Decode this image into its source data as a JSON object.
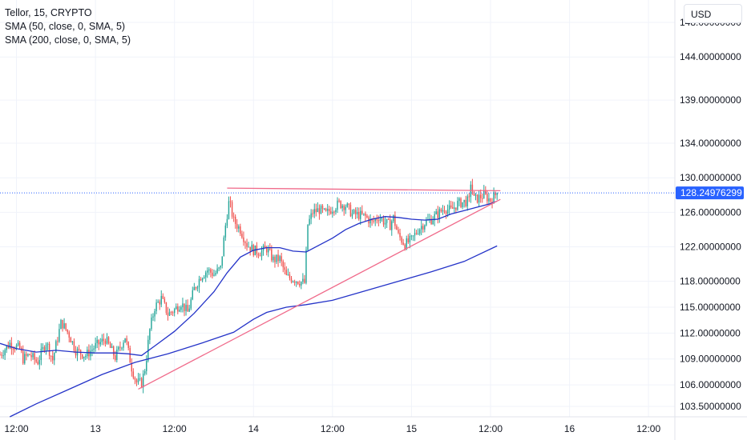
{
  "legend": {
    "symbol": "Tellor, 15, CRYPTO",
    "sma50": "SMA (50, close, 0, SMA, 5)",
    "sma200": "SMA (200, close, 0, SMA, 5)"
  },
  "currency": "USD",
  "colors": {
    "up": "#26a69a",
    "down": "#ef5350",
    "sma": "#2433c8",
    "trendline": "#f06a8a",
    "price_tag": "#2962ff",
    "grid": "#f0f3fa"
  },
  "chart_data": {
    "type": "candlestick",
    "y_ticks": [
      "148.00000000",
      "144.00000000",
      "139.00000000",
      "134.00000000",
      "130.00000000",
      "126.00000000",
      "122.00000000",
      "118.00000000",
      "115.00000000",
      "112.00000000",
      "109.00000000",
      "106.00000000",
      "103.50000000"
    ],
    "y_tick_values": [
      148,
      144,
      139,
      134,
      130,
      126,
      122,
      118,
      115,
      112,
      109,
      106,
      103.5
    ],
    "ylim": [
      102.3,
      150.6
    ],
    "x_ticks": [
      {
        "label": "12:00",
        "t": 12
      },
      {
        "label": "13",
        "t": 24
      },
      {
        "label": "12:00",
        "t": 36
      },
      {
        "label": "14",
        "t": 48
      },
      {
        "label": "12:00",
        "t": 60
      },
      {
        "label": "15",
        "t": 72
      },
      {
        "label": "12:00",
        "t": 84
      },
      {
        "label": "16",
        "t": 96
      },
      {
        "label": "12:00",
        "t": 108
      }
    ],
    "xlim": [
      9.5,
      112
    ],
    "last_price": "128.24976299",
    "last_price_value": 128.25,
    "anchors": [
      [
        9.5,
        109.5
      ],
      [
        11,
        110.8
      ],
      [
        12.5,
        110.2
      ],
      [
        13,
        109
      ],
      [
        14,
        109.5
      ],
      [
        15.2,
        108.6
      ],
      [
        16.5,
        111
      ],
      [
        17.5,
        108.9
      ],
      [
        18.8,
        113.3
      ],
      [
        20,
        111.8
      ],
      [
        21,
        110
      ],
      [
        22.5,
        109.4
      ],
      [
        24,
        110.5
      ],
      [
        25.5,
        111.3
      ],
      [
        27,
        109.2
      ],
      [
        28.5,
        111.6
      ],
      [
        29.5,
        108
      ],
      [
        30.2,
        106.3
      ],
      [
        31,
        106.2
      ],
      [
        31.6,
        108.2
      ],
      [
        32.2,
        112.2
      ],
      [
        33,
        115
      ],
      [
        34,
        116
      ],
      [
        35,
        114.2
      ],
      [
        36,
        114.7
      ],
      [
        37,
        115.5
      ],
      [
        38,
        114.4
      ],
      [
        39,
        117.1
      ],
      [
        40,
        118.6
      ],
      [
        41,
        119.3
      ],
      [
        42,
        118.8
      ],
      [
        43,
        119.5
      ],
      [
        43.8,
        124.8
      ],
      [
        44.3,
        127.3
      ],
      [
        45,
        125
      ],
      [
        46,
        124
      ],
      [
        47,
        122.3
      ],
      [
        48,
        121.6
      ],
      [
        49,
        121.4
      ],
      [
        50,
        121.8
      ],
      [
        51,
        120.5
      ],
      [
        52,
        120.6
      ],
      [
        53,
        118.5
      ],
      [
        54,
        118.3
      ],
      [
        55,
        118
      ],
      [
        55.8,
        117.8
      ],
      [
        56.2,
        124.5
      ],
      [
        57,
        126
      ],
      [
        58,
        126.3
      ],
      [
        59,
        125.8
      ],
      [
        60,
        126.5
      ],
      [
        61,
        127
      ],
      [
        62,
        126.8
      ],
      [
        63,
        125.8
      ],
      [
        64,
        125.7
      ],
      [
        65,
        125.5
      ],
      [
        66,
        124.8
      ],
      [
        67,
        125.5
      ],
      [
        68,
        124.8
      ],
      [
        68.8,
        124.5
      ],
      [
        69.2,
        125.5
      ],
      [
        70,
        123.3
      ],
      [
        71,
        122.3
      ],
      [
        72,
        122.8
      ],
      [
        73,
        124
      ],
      [
        74,
        124.8
      ],
      [
        75,
        125.2
      ],
      [
        76,
        125.8
      ],
      [
        77,
        126.5
      ],
      [
        78,
        126.2
      ],
      [
        79,
        127
      ],
      [
        80,
        127.2
      ],
      [
        80.8,
        127.3
      ],
      [
        81,
        129.5
      ],
      [
        81.5,
        127.5
      ],
      [
        82,
        127.6
      ],
      [
        83,
        128
      ],
      [
        84,
        127.4
      ],
      [
        85,
        128.25
      ]
    ],
    "sma50": [
      [
        9.5,
        110.8
      ],
      [
        12,
        110.2
      ],
      [
        15,
        109.8
      ],
      [
        18,
        110
      ],
      [
        21,
        109.8
      ],
      [
        24,
        109.7
      ],
      [
        27,
        109.7
      ],
      [
        29,
        109.6
      ],
      [
        31,
        109.4
      ],
      [
        33,
        110.5
      ],
      [
        36,
        112.2
      ],
      [
        39,
        114.3
      ],
      [
        42,
        116.8
      ],
      [
        44,
        119
      ],
      [
        46,
        120.8
      ],
      [
        48,
        121.6
      ],
      [
        50,
        121.9
      ],
      [
        52,
        121.9
      ],
      [
        54,
        121.5
      ],
      [
        56,
        121.4
      ],
      [
        58,
        122.2
      ],
      [
        60,
        123
      ],
      [
        62,
        124
      ],
      [
        64,
        124.7
      ],
      [
        66,
        125.2
      ],
      [
        68,
        125.5
      ],
      [
        70,
        125.4
      ],
      [
        72,
        125.2
      ],
      [
        74,
        125.1
      ],
      [
        76,
        125.2
      ],
      [
        78,
        125.8
      ],
      [
        80,
        126.2
      ],
      [
        82,
        126.6
      ],
      [
        84,
        127
      ],
      [
        85,
        127.3
      ]
    ],
    "sma200": [
      [
        11,
        102.3
      ],
      [
        15,
        103.8
      ],
      [
        20,
        105.5
      ],
      [
        25,
        107.2
      ],
      [
        30,
        108.6
      ],
      [
        35,
        109.6
      ],
      [
        40,
        110.8
      ],
      [
        45,
        112.1
      ],
      [
        48,
        113.6
      ],
      [
        50,
        114.4
      ],
      [
        53,
        115
      ],
      [
        56,
        115.3
      ],
      [
        60,
        115.8
      ],
      [
        65,
        116.9
      ],
      [
        70,
        118
      ],
      [
        75,
        119.1
      ],
      [
        80,
        120.3
      ],
      [
        85,
        122.1
      ]
    ],
    "trend_lower": [
      [
        30.5,
        105.5
      ],
      [
        85.5,
        127.5
      ]
    ],
    "trend_upper": [
      [
        44,
        128.8
      ],
      [
        85.5,
        128.5
      ]
    ]
  }
}
